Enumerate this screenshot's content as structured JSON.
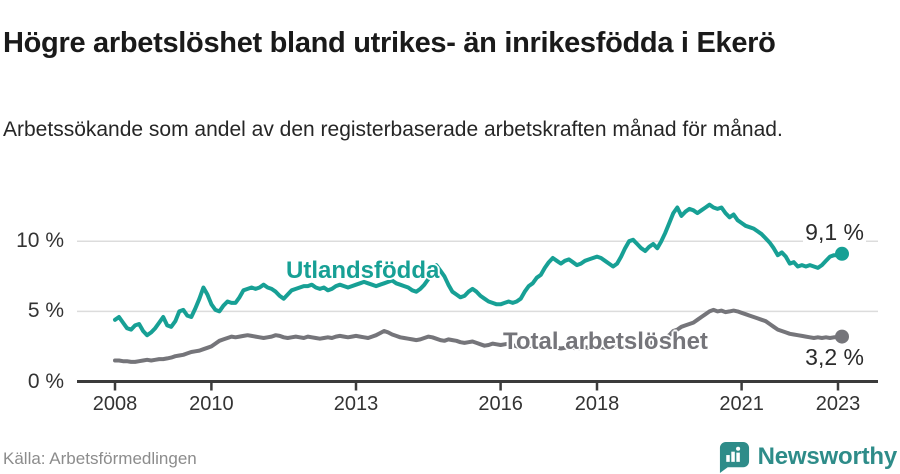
{
  "header": {
    "title": "Högre arbetslöshet bland utrikes- än inrikesfödda i Ekerö",
    "subtitle": "Arbetssökande som andel av den registerbaserade arbetskraften månad för månad."
  },
  "footer": {
    "source": "Källa: Arbetsförmedlingen",
    "brand": "Newsworthy"
  },
  "colors": {
    "foreign_born_line": "#17A095",
    "total_line": "#75757A",
    "grid": "#dcdcdc",
    "axis": "#3b3b3b",
    "brand_teal": "#2e8c89"
  },
  "chart_data": {
    "type": "line",
    "title": "Högre arbetslöshet bland utrikes- än inrikesfödda i Ekerö",
    "x_unit": "monthly 2008-01 to 2023-02",
    "x_start": 2008,
    "ylim": [
      0,
      13.5
    ],
    "grid": "horizontal",
    "y_ticks": [
      {
        "value": 0,
        "label": "0 %"
      },
      {
        "value": 5,
        "label": "5 %"
      },
      {
        "value": 10,
        "label": "10 %"
      }
    ],
    "x_ticks": [
      {
        "value": 2008,
        "label": "2008"
      },
      {
        "value": 2010,
        "label": "2010"
      },
      {
        "value": 2013,
        "label": "2013"
      },
      {
        "value": 2016,
        "label": "2016"
      },
      {
        "value": 2018,
        "label": "2018"
      },
      {
        "value": 2021,
        "label": "2021"
      },
      {
        "value": 2023,
        "label": "2023"
      }
    ],
    "series": [
      {
        "name": "Utlandsfödda",
        "color": "#17A095",
        "end_label": "9,1 %",
        "end_value": 9.1,
        "values": [
          4.4,
          4.6,
          4.2,
          3.8,
          3.7,
          4.0,
          4.1,
          3.6,
          3.3,
          3.5,
          3.8,
          4.2,
          4.6,
          4.0,
          3.9,
          4.3,
          5.0,
          5.1,
          4.7,
          4.6,
          5.2,
          5.9,
          6.7,
          6.2,
          5.5,
          5.1,
          5.0,
          5.4,
          5.7,
          5.6,
          5.6,
          6.0,
          6.5,
          6.6,
          6.7,
          6.6,
          6.7,
          6.9,
          6.7,
          6.6,
          6.4,
          6.1,
          5.9,
          6.2,
          6.5,
          6.6,
          6.7,
          6.8,
          6.8,
          6.9,
          6.7,
          6.6,
          6.7,
          6.5,
          6.6,
          6.8,
          6.9,
          6.8,
          6.7,
          6.8,
          6.9,
          7.0,
          7.1,
          7.0,
          6.9,
          6.8,
          6.9,
          7.0,
          7.1,
          7.2,
          7.0,
          6.9,
          6.8,
          6.7,
          6.5,
          6.4,
          6.6,
          6.9,
          7.3,
          7.8,
          8.3,
          7.9,
          7.5,
          6.9,
          6.4,
          6.2,
          6.0,
          6.1,
          6.4,
          6.6,
          6.4,
          6.1,
          5.9,
          5.7,
          5.6,
          5.5,
          5.5,
          5.6,
          5.7,
          5.6,
          5.7,
          5.9,
          6.4,
          6.8,
          7.0,
          7.4,
          7.6,
          8.1,
          8.5,
          8.8,
          8.6,
          8.4,
          8.6,
          8.7,
          8.5,
          8.3,
          8.4,
          8.6,
          8.7,
          8.8,
          8.9,
          8.8,
          8.6,
          8.4,
          8.2,
          8.4,
          8.9,
          9.5,
          10.0,
          10.1,
          9.8,
          9.5,
          9.3,
          9.6,
          9.8,
          9.5,
          10.0,
          10.6,
          11.3,
          12.0,
          12.4,
          11.8,
          12.1,
          12.3,
          12.2,
          12.0,
          12.2,
          12.4,
          12.6,
          12.4,
          12.3,
          12.4,
          12.0,
          11.7,
          11.9,
          11.5,
          11.3,
          11.1,
          11.0,
          10.9,
          10.7,
          10.5,
          10.2,
          9.9,
          9.5,
          9.0,
          9.2,
          8.9,
          8.4,
          8.5,
          8.2,
          8.3,
          8.2,
          8.3,
          8.2,
          8.1,
          8.3,
          8.6,
          8.9,
          9.0,
          9.0,
          9.1
        ]
      },
      {
        "name": "Total arbetslöshet",
        "color": "#75757A",
        "end_label": "3,2 %",
        "end_value": 3.2,
        "values": [
          1.5,
          1.5,
          1.45,
          1.45,
          1.4,
          1.4,
          1.45,
          1.5,
          1.55,
          1.5,
          1.55,
          1.6,
          1.6,
          1.65,
          1.7,
          1.8,
          1.85,
          1.9,
          2.0,
          2.1,
          2.15,
          2.2,
          2.3,
          2.4,
          2.5,
          2.7,
          2.9,
          3.0,
          3.1,
          3.2,
          3.15,
          3.2,
          3.25,
          3.3,
          3.25,
          3.2,
          3.15,
          3.1,
          3.15,
          3.2,
          3.3,
          3.25,
          3.15,
          3.1,
          3.15,
          3.2,
          3.15,
          3.1,
          3.2,
          3.15,
          3.1,
          3.05,
          3.1,
          3.15,
          3.1,
          3.2,
          3.25,
          3.2,
          3.15,
          3.2,
          3.25,
          3.2,
          3.15,
          3.1,
          3.2,
          3.3,
          3.45,
          3.6,
          3.5,
          3.35,
          3.25,
          3.15,
          3.1,
          3.05,
          3.0,
          2.95,
          3.0,
          3.1,
          3.2,
          3.15,
          3.05,
          2.95,
          2.9,
          3.0,
          2.95,
          2.9,
          2.8,
          2.75,
          2.8,
          2.85,
          2.75,
          2.65,
          2.55,
          2.6,
          2.7,
          2.65,
          2.6,
          2.65,
          2.7,
          2.6,
          2.5,
          2.45,
          2.5,
          2.55,
          2.5,
          2.45,
          2.4,
          2.45,
          2.5,
          2.45,
          2.4,
          2.35,
          2.4,
          2.45,
          2.4,
          2.35,
          2.4,
          2.45,
          2.4,
          2.45,
          2.5,
          2.45,
          2.4,
          2.45,
          2.5,
          2.55,
          2.5,
          2.45,
          2.5,
          2.55,
          2.6,
          2.65,
          2.7,
          2.7,
          2.8,
          2.9,
          3.0,
          3.1,
          3.3,
          3.6,
          3.7,
          3.9,
          4.0,
          4.1,
          4.2,
          4.4,
          4.6,
          4.8,
          5.0,
          5.1,
          5.0,
          5.05,
          4.95,
          5.0,
          5.05,
          5.0,
          4.9,
          4.8,
          4.7,
          4.6,
          4.5,
          4.4,
          4.3,
          4.1,
          3.9,
          3.7,
          3.6,
          3.5,
          3.4,
          3.35,
          3.3,
          3.25,
          3.2,
          3.15,
          3.1,
          3.15,
          3.1,
          3.15,
          3.1,
          3.15,
          3.15,
          3.2
        ]
      }
    ]
  }
}
